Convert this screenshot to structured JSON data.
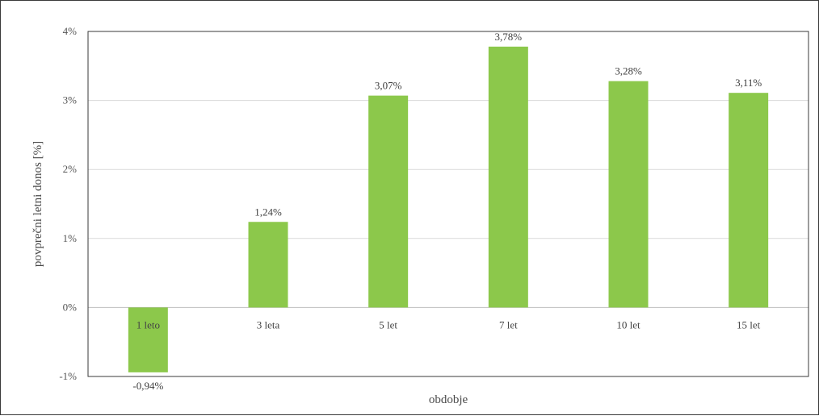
{
  "chart_data": {
    "type": "bar",
    "title": "",
    "xlabel": "obdobje",
    "ylabel": "povprečni letni donos [%]",
    "categories": [
      "1 leto",
      "3 leta",
      "5 let",
      "7 let",
      "10 let",
      "15 let"
    ],
    "values": [
      -0.94,
      1.24,
      3.07,
      3.78,
      3.28,
      3.11
    ],
    "data_labels": [
      "-0,94%",
      "1,24%",
      "3,07%",
      "3,78%",
      "3,28%",
      "3,11%"
    ],
    "yticks": [
      4,
      3,
      2,
      1,
      0,
      -1
    ],
    "ytick_labels": [
      "4%",
      "3%",
      "2%",
      "1%",
      "0%",
      "-1%"
    ],
    "ylim": [
      -1,
      4
    ],
    "grid": true,
    "legend": "none",
    "colors": {
      "bar": "#8cc84b",
      "grid": "#d9d9d9",
      "plot_border": "#3a3a3a",
      "zero_line": "#bfbfbf"
    }
  }
}
